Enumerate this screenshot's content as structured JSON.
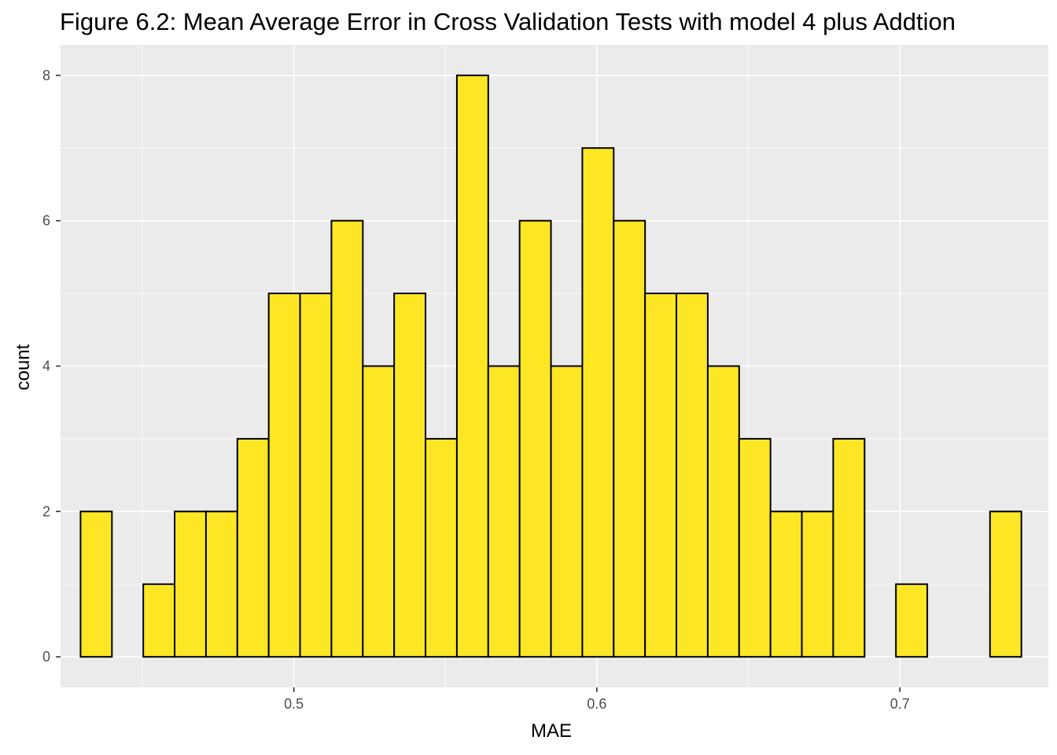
{
  "chart_data": {
    "type": "bar",
    "subtype": "histogram",
    "title": "Figure 6.2: Mean Average Error in Cross Validation Tests with model 4 plus Addtion",
    "xlabel": "MAE",
    "ylabel": "count",
    "xlim": [
      0.423,
      0.749
    ],
    "ylim": [
      -0.42,
      8.42
    ],
    "x_ticks": [
      0.5,
      0.6,
      0.7
    ],
    "x_tick_labels": [
      "0.5",
      "0.6",
      "0.7"
    ],
    "y_ticks": [
      0,
      2,
      4,
      6,
      8
    ],
    "y_tick_labels": [
      "0",
      "2",
      "4",
      "6",
      "8"
    ],
    "bin_start": 0.4296,
    "bin_width": 0.01035,
    "counts": [
      2,
      0,
      1,
      2,
      2,
      3,
      5,
      5,
      6,
      4,
      5,
      3,
      8,
      4,
      6,
      4,
      7,
      6,
      5,
      5,
      4,
      3,
      2,
      2,
      3,
      0,
      1,
      0,
      0,
      2
    ],
    "fill_color": "#FDE725",
    "outline_color": "#000000",
    "panel_background": "#EBEBEB",
    "grid": true,
    "legend": "none"
  }
}
